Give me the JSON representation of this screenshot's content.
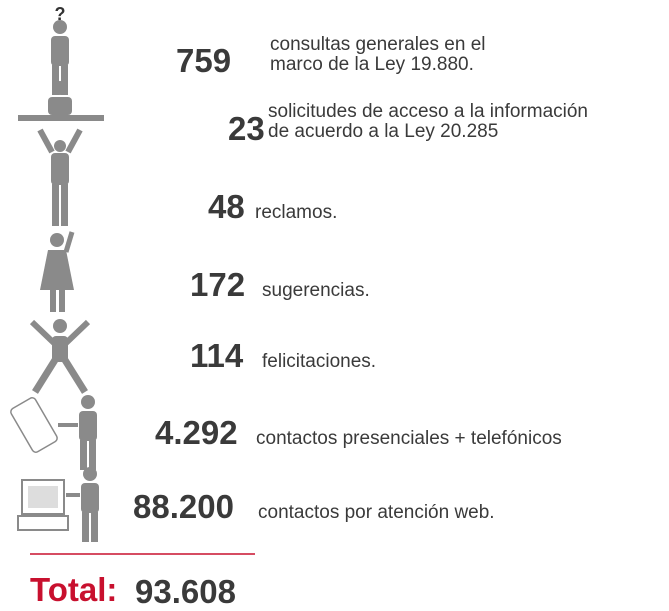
{
  "items": [
    {
      "number": "759",
      "lines": [
        "consultas generales en el",
        "marco de la Ley 19.880."
      ]
    },
    {
      "number": "23",
      "lines": [
        "solicitudes de acceso a la información",
        "de acuerdo a la Ley 20.285"
      ]
    },
    {
      "number": "48",
      "lines": [
        "reclamos."
      ]
    },
    {
      "number": "172",
      "lines": [
        "sugerencias."
      ]
    },
    {
      "number": "114",
      "lines": [
        "felicitaciones."
      ]
    },
    {
      "number": "4.292",
      "lines": [
        "contactos presenciales + telefónicos"
      ]
    },
    {
      "number": "88.200",
      "lines": [
        "contactos por atención web."
      ]
    }
  ],
  "total": {
    "label": "Total:",
    "value": "93.608"
  }
}
